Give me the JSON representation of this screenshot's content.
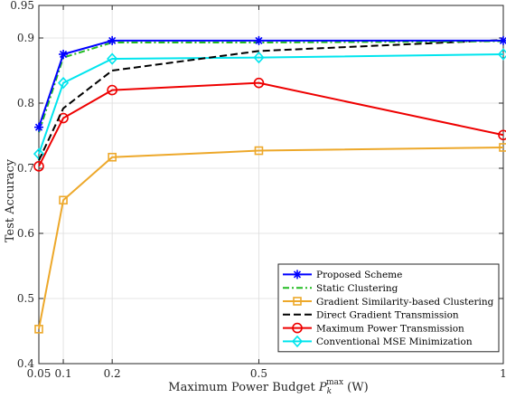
{
  "chart_data": {
    "type": "line",
    "title": "",
    "xlabel": "Maximum Power Budget P_k^max (W)",
    "xlabel_parts": {
      "main": "Maximum Power Budget ",
      "symbol": "P",
      "sub": "k",
      "sup": "max",
      "unit": " (W)"
    },
    "ylabel": "Test Accuracy",
    "xlim": [
      0.05,
      1.0
    ],
    "ylim": [
      0.4,
      0.95
    ],
    "grid": true,
    "legend_position": "bottom-right",
    "x_ticks": [
      0.05,
      0.1,
      0.2,
      0.5,
      1
    ],
    "x_tick_labels": [
      "0.05",
      "0.1",
      "0.2",
      "0.5",
      "1"
    ],
    "y_ticks": [
      0.4,
      0.5,
      0.6,
      0.7,
      0.8,
      0.9,
      0.95
    ],
    "y_tick_labels": [
      "0.4",
      "0.5",
      "0.6",
      "0.7",
      "0.8",
      "0.9",
      "0.95"
    ],
    "x": [
      0.05,
      0.1,
      0.2,
      0.5,
      1.0
    ],
    "series": [
      {
        "name": "Proposed Scheme",
        "values": [
          0.763,
          0.875,
          0.896,
          0.896,
          0.896
        ],
        "color": "#0000ff",
        "marker": "asterisk",
        "dash": "solid"
      },
      {
        "name": "Static Clustering",
        "values": [
          0.755,
          0.87,
          0.893,
          0.893,
          0.895
        ],
        "color": "#22bb22",
        "marker": "none",
        "dash": "dashdot"
      },
      {
        "name": "Gradient Similarity-based Clustering",
        "values": [
          0.453,
          0.651,
          0.717,
          0.727,
          0.732
        ],
        "color": "#eda82a",
        "marker": "square",
        "dash": "solid"
      },
      {
        "name": "Direct Gradient Transmission",
        "values": [
          0.712,
          0.792,
          0.85,
          0.88,
          0.897
        ],
        "color": "#000000",
        "marker": "none",
        "dash": "dashed"
      },
      {
        "name": "Maximum Power Transmission",
        "values": [
          0.703,
          0.777,
          0.82,
          0.831,
          0.751
        ],
        "color": "#ee0000",
        "marker": "circle",
        "dash": "solid"
      },
      {
        "name": "Conventional MSE Minimization",
        "values": [
          0.722,
          0.831,
          0.868,
          0.87,
          0.875
        ],
        "color": "#00e5ee",
        "marker": "diamond",
        "dash": "solid"
      }
    ]
  }
}
